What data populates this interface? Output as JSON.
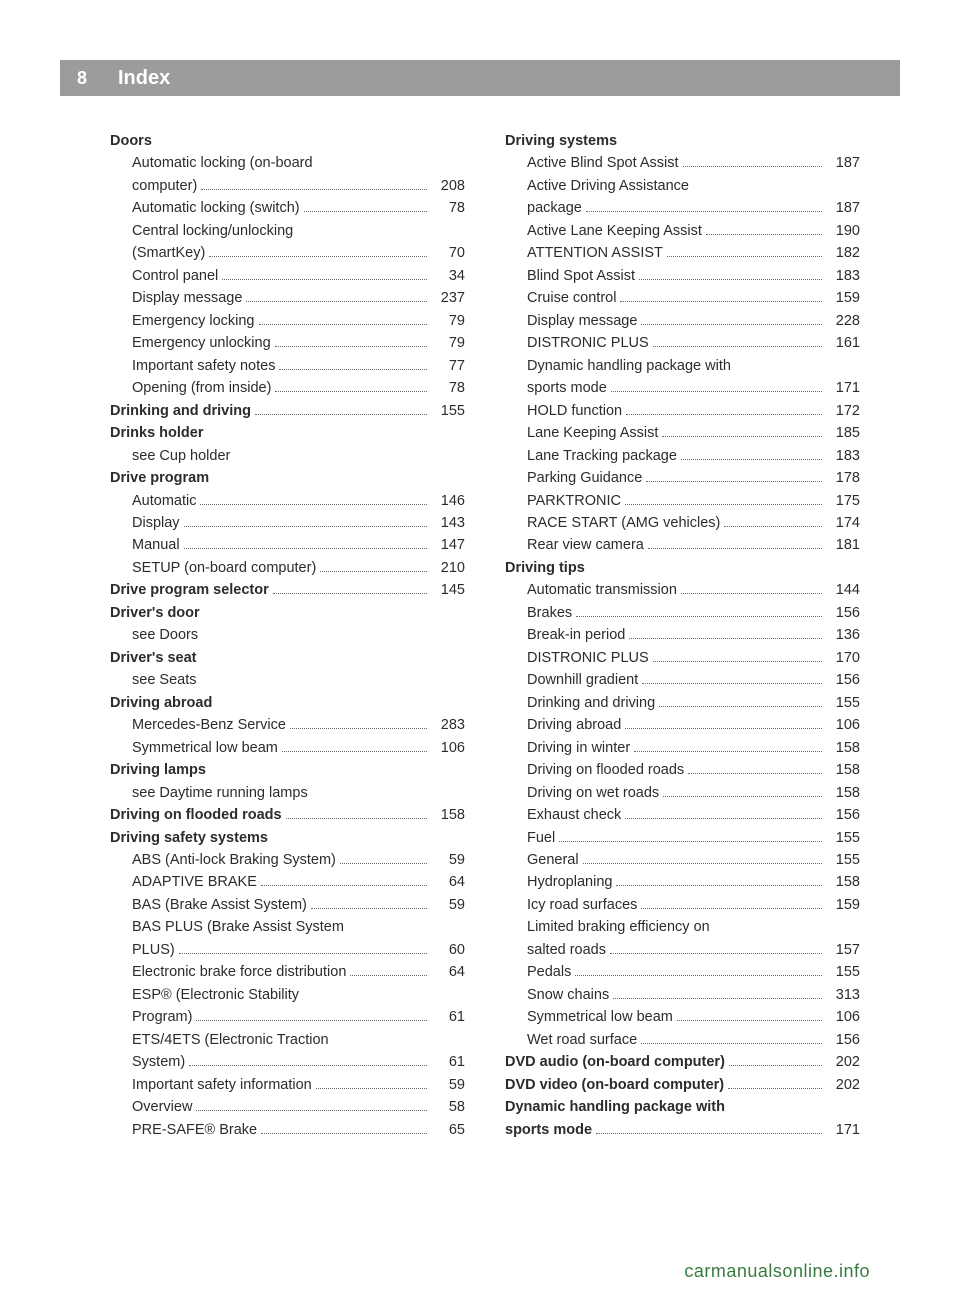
{
  "page_number": "8",
  "header_title": "Index",
  "footer": "carmanualsonline.info",
  "colors": {
    "header_bg": "#9c9c9c",
    "header_text": "#ffffff",
    "body_text": "#2c2c2c",
    "dot_color": "#6a6a6a",
    "footer_text": "#3a7a42",
    "page_bg": "#ffffff"
  },
  "left_column": [
    {
      "type": "heading",
      "text": "Doors"
    },
    {
      "type": "sub_multiline",
      "text1": "Automatic locking (on-board",
      "text2": "computer)",
      "page": "208"
    },
    {
      "type": "sub",
      "text": "Automatic locking (switch)",
      "page": "78"
    },
    {
      "type": "sub_multiline",
      "text1": "Central locking/unlocking",
      "text2": "(SmartKey)",
      "page": "70"
    },
    {
      "type": "sub",
      "text": "Control panel",
      "page": "34"
    },
    {
      "type": "sub",
      "text": "Display message",
      "page": "237"
    },
    {
      "type": "sub",
      "text": "Emergency locking",
      "page": "79"
    },
    {
      "type": "sub",
      "text": "Emergency unlocking",
      "page": "79"
    },
    {
      "type": "sub",
      "text": "Important safety notes",
      "page": "77"
    },
    {
      "type": "sub",
      "text": "Opening (from inside)",
      "page": "78"
    },
    {
      "type": "heading_page",
      "text": "Drinking and driving",
      "page": "155"
    },
    {
      "type": "heading",
      "text": "Drinks holder"
    },
    {
      "type": "see",
      "text": "see Cup holder"
    },
    {
      "type": "heading",
      "text": "Drive program"
    },
    {
      "type": "sub",
      "text": "Automatic",
      "page": "146"
    },
    {
      "type": "sub",
      "text": "Display",
      "page": "143"
    },
    {
      "type": "sub",
      "text": "Manual",
      "page": "147"
    },
    {
      "type": "sub",
      "text": "SETUP (on-board computer)",
      "page": "210"
    },
    {
      "type": "heading_page",
      "text": "Drive program selector",
      "page": "145"
    },
    {
      "type": "heading",
      "text": "Driver's door"
    },
    {
      "type": "see",
      "text": "see Doors"
    },
    {
      "type": "heading",
      "text": "Driver's seat"
    },
    {
      "type": "see",
      "text": "see Seats"
    },
    {
      "type": "heading",
      "text": "Driving abroad"
    },
    {
      "type": "sub",
      "text": "Mercedes-Benz Service",
      "page": "283"
    },
    {
      "type": "sub",
      "text": "Symmetrical low beam",
      "page": "106"
    },
    {
      "type": "heading",
      "text": "Driving lamps"
    },
    {
      "type": "see",
      "text": "see Daytime running lamps"
    },
    {
      "type": "heading_page",
      "text": "Driving on flooded roads",
      "page": "158"
    },
    {
      "type": "heading",
      "text": "Driving safety systems"
    },
    {
      "type": "sub",
      "text": "ABS (Anti-lock Braking System)",
      "page": "59"
    },
    {
      "type": "sub",
      "text": "ADAPTIVE BRAKE",
      "page": "64"
    },
    {
      "type": "sub",
      "text": "BAS (Brake Assist System)",
      "page": "59"
    },
    {
      "type": "sub_multiline",
      "text1": "BAS PLUS (Brake Assist System",
      "text2": "PLUS)",
      "page": "60"
    },
    {
      "type": "sub",
      "text": "Electronic brake force distribution",
      "page": "64"
    },
    {
      "type": "sub_multiline",
      "text1": "ESP® (Electronic Stability",
      "text2": "Program)",
      "page": "61"
    },
    {
      "type": "sub_multiline",
      "text1": "ETS/4ETS (Electronic Traction",
      "text2": "System)",
      "page": "61"
    },
    {
      "type": "sub",
      "text": "Important safety information",
      "page": "59"
    },
    {
      "type": "sub",
      "text": "Overview",
      "page": "58"
    },
    {
      "type": "sub",
      "text": "PRE-SAFE® Brake",
      "page": "65"
    }
  ],
  "right_column": [
    {
      "type": "heading",
      "text": "Driving systems"
    },
    {
      "type": "sub",
      "text": "Active Blind Spot Assist",
      "page": "187"
    },
    {
      "type": "sub_multiline",
      "text1": "Active Driving Assistance",
      "text2": "package",
      "page": "187"
    },
    {
      "type": "sub",
      "text": "Active Lane Keeping Assist",
      "page": "190"
    },
    {
      "type": "sub",
      "text": "ATTENTION ASSIST",
      "page": "182"
    },
    {
      "type": "sub",
      "text": "Blind Spot Assist",
      "page": "183"
    },
    {
      "type": "sub",
      "text": "Cruise control",
      "page": "159"
    },
    {
      "type": "sub",
      "text": "Display message",
      "page": "228"
    },
    {
      "type": "sub",
      "text": "DISTRONIC PLUS",
      "page": "161"
    },
    {
      "type": "sub_multiline",
      "text1": "Dynamic handling package with",
      "text2": "sports mode",
      "page": "171"
    },
    {
      "type": "sub",
      "text": "HOLD function",
      "page": "172"
    },
    {
      "type": "sub",
      "text": "Lane Keeping Assist",
      "page": "185"
    },
    {
      "type": "sub",
      "text": "Lane Tracking package",
      "page": "183"
    },
    {
      "type": "sub",
      "text": "Parking Guidance",
      "page": "178"
    },
    {
      "type": "sub",
      "text": "PARKTRONIC",
      "page": "175"
    },
    {
      "type": "sub",
      "text": "RACE START (AMG vehicles)",
      "page": "174"
    },
    {
      "type": "sub",
      "text": "Rear view camera",
      "page": "181"
    },
    {
      "type": "heading",
      "text": "Driving tips"
    },
    {
      "type": "sub",
      "text": "Automatic transmission",
      "page": "144"
    },
    {
      "type": "sub",
      "text": "Brakes",
      "page": "156"
    },
    {
      "type": "sub",
      "text": "Break-in period",
      "page": "136"
    },
    {
      "type": "sub",
      "text": "DISTRONIC PLUS",
      "page": "170"
    },
    {
      "type": "sub",
      "text": "Downhill gradient",
      "page": "156"
    },
    {
      "type": "sub",
      "text": "Drinking and driving",
      "page": "155"
    },
    {
      "type": "sub",
      "text": "Driving abroad",
      "page": "106"
    },
    {
      "type": "sub",
      "text": "Driving in winter",
      "page": "158"
    },
    {
      "type": "sub",
      "text": "Driving on flooded roads",
      "page": "158"
    },
    {
      "type": "sub",
      "text": "Driving on wet roads",
      "page": "158"
    },
    {
      "type": "sub",
      "text": "Exhaust check",
      "page": "156"
    },
    {
      "type": "sub",
      "text": "Fuel",
      "page": "155"
    },
    {
      "type": "sub",
      "text": "General",
      "page": "155"
    },
    {
      "type": "sub",
      "text": "Hydroplaning",
      "page": "158"
    },
    {
      "type": "sub",
      "text": "Icy road surfaces",
      "page": "159"
    },
    {
      "type": "sub_multiline",
      "text1": "Limited braking efficiency on",
      "text2": "salted roads",
      "page": "157"
    },
    {
      "type": "sub",
      "text": "Pedals",
      "page": "155"
    },
    {
      "type": "sub",
      "text": "Snow chains",
      "page": "313"
    },
    {
      "type": "sub",
      "text": "Symmetrical low beam",
      "page": "106"
    },
    {
      "type": "sub",
      "text": "Wet road surface",
      "page": "156"
    },
    {
      "type": "heading_page",
      "text": "DVD audio (on-board computer)",
      "page": "202"
    },
    {
      "type": "heading_page",
      "text": "DVD video (on-board computer)",
      "page": "202"
    },
    {
      "type": "heading_multiline",
      "text1": "Dynamic handling package with",
      "text2": "sports mode",
      "page": "171"
    }
  ]
}
